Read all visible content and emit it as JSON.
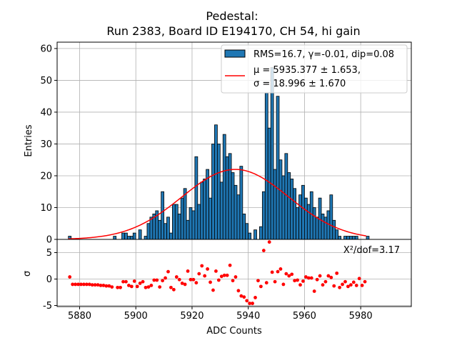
{
  "chart_data": {
    "type": "bar",
    "title_line1": "Pedestal:",
    "title_line2": "Run 2383, Board ID E194170, CH 54, hi gain",
    "xlabel": "ADC Counts",
    "ylabel_top": "Entries",
    "ylabel_bottom": "σ",
    "xlim": [
      5872,
      5998
    ],
    "ylim_top": [
      0,
      62
    ],
    "ylim_bottom": [
      -5.2,
      7.5
    ],
    "xticks": [
      5880,
      5900,
      5920,
      5940,
      5960,
      5980
    ],
    "yticks_top": [
      0,
      10,
      20,
      30,
      40,
      50,
      60
    ],
    "yticks_bottom": [
      -5,
      0,
      5
    ],
    "grid": true,
    "legend_position": "top-right",
    "legend": {
      "hist_label": "RMS=16.7, γ=-0.01, dip=0.08",
      "fit_label_line1": "μ = 5935.377 ± 1.653,",
      "fit_label_line2": "σ = 18.996 ± 1.670"
    },
    "annotation": "X²/dof=3.17",
    "fit": {
      "mu": 5935.377,
      "sigma": 18.996,
      "amplitude": 22
    },
    "histogram": {
      "bin_start": 5876,
      "bin_width": 1,
      "counts": [
        1,
        0,
        0,
        0,
        0,
        0,
        0,
        0,
        0,
        0,
        0,
        0,
        0,
        0,
        0,
        0,
        1,
        0,
        0,
        2,
        2,
        1,
        1,
        2,
        0,
        3,
        0,
        1,
        5,
        7,
        8,
        9,
        6,
        15,
        5,
        7,
        2,
        11,
        11,
        8,
        13,
        16,
        6,
        10,
        9,
        26,
        11,
        18,
        19,
        22,
        13,
        30,
        36,
        30,
        18,
        33,
        26,
        27,
        21,
        17,
        14,
        23,
        8,
        5,
        2,
        0,
        3,
        0,
        4,
        15,
        46,
        35,
        54,
        22,
        45,
        25,
        20,
        27,
        21,
        19,
        16,
        10,
        14,
        17,
        13,
        11,
        15,
        10,
        7,
        13,
        8,
        7,
        9,
        14,
        6,
        3,
        1,
        0,
        1,
        1,
        1,
        1,
        1,
        0,
        0,
        0,
        1
      ]
    },
    "residuals": {
      "x": [
        5876,
        5877,
        5878,
        5879,
        5880,
        5881,
        5882,
        5883,
        5884,
        5885,
        5886,
        5887,
        5888,
        5889,
        5890,
        5891,
        5893,
        5894,
        5895,
        5896,
        5897,
        5898,
        5899,
        5900,
        5901,
        5902,
        5903,
        5904,
        5905,
        5906,
        5907,
        5908,
        5909,
        5910,
        5911,
        5912,
        5913,
        5914,
        5915,
        5916,
        5917,
        5918,
        5919,
        5920,
        5921,
        5922,
        5923,
        5924,
        5925,
        5926,
        5927,
        5928,
        5929,
        5930,
        5931,
        5932,
        5933,
        5934,
        5935,
        5936,
        5937,
        5938,
        5939,
        5940,
        5941,
        5942,
        5943,
        5944,
        5945,
        5946,
        5947,
        5948,
        5949,
        5950,
        5951,
        5952,
        5953,
        5954,
        5955,
        5956,
        5957,
        5958,
        5959,
        5960,
        5961,
        5962,
        5963,
        5964,
        5965,
        5966,
        5967,
        5968,
        5969,
        5970,
        5971,
        5972,
        5973,
        5974,
        5975,
        5976,
        5977,
        5978,
        5979,
        5980,
        5981
      ],
      "y": [
        0.4,
        -1.0,
        -1.0,
        -1.0,
        -1.0,
        -1.0,
        -1.0,
        -1.0,
        -1.1,
        -1.1,
        -1.1,
        -1.2,
        -1.2,
        -1.3,
        -1.3,
        -1.5,
        -1.6,
        -1.6,
        -0.5,
        -0.5,
        -1.2,
        -1.4,
        -0.4,
        -1.4,
        -0.8,
        -0.5,
        -1.6,
        -1.5,
        -1.2,
        -0.2,
        -0.2,
        -1.5,
        -0.3,
        0.2,
        1.4,
        -1.6,
        -2.0,
        0.4,
        -0.1,
        -0.8,
        -1.0,
        1.5,
        -0.1,
        -0.1,
        -0.7,
        1.0,
        2.5,
        0.6,
        1.9,
        -0.6,
        -2.1,
        1.5,
        -0.2,
        0.5,
        0.7,
        0.7,
        2.6,
        -0.3,
        0.4,
        -2.2,
        -3.2,
        -3.4,
        -4.1,
        -4.6,
        -4.6,
        -3.5,
        -0.3,
        -1.4,
        5.4,
        -0.7,
        7.0,
        1.3,
        -0.5,
        1.4,
        1.9,
        -1.0,
        1.0,
        0.6,
        0.9,
        -0.3,
        -0.2,
        -1.1,
        -0.4,
        0.4,
        0.2,
        0.2,
        -2.3,
        -0.1,
        0.6,
        -1.1,
        -0.5,
        0.6,
        0.3,
        -1.3,
        1.1,
        -1.6,
        -1.0,
        -0.5,
        -1.4,
        -1.1,
        -0.6,
        -1.2,
        0.1,
        -1.2,
        -0.5
      ]
    }
  }
}
